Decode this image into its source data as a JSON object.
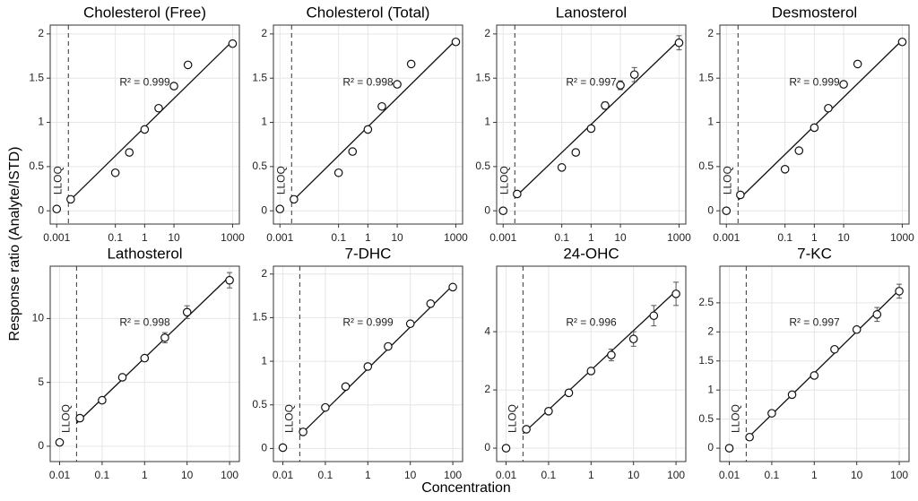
{
  "ylabel": "Response ratio (Analyte/ISTD)",
  "xlabel": "Concentration",
  "chart_data": [
    {
      "type": "scatter",
      "title": "Cholesterol (Free)",
      "log_x": true,
      "grid": true,
      "x": [
        0.001,
        0.003,
        0.1,
        0.3,
        1,
        3,
        10,
        30,
        1000
      ],
      "values": [
        0.02,
        0.13,
        0.43,
        0.66,
        0.92,
        1.16,
        1.41,
        1.65,
        1.89
      ],
      "errors": [
        0,
        0,
        0,
        0,
        0,
        0,
        0,
        0.03,
        0
      ],
      "fit": {
        "x": [
          0.0025,
          1000
        ],
        "y": [
          0.1,
          1.92
        ]
      },
      "lloq": {
        "x": 0.0025,
        "label": "LLOQ"
      },
      "annotation": "R² = 0.999",
      "xlim": [
        0.0006,
        1700
      ],
      "xticks": [
        0.001,
        0.1,
        1,
        10,
        1000
      ],
      "ylim": [
        -0.15,
        2.1
      ],
      "yticks": [
        0,
        0.5,
        1,
        1.5,
        2
      ]
    },
    {
      "type": "scatter",
      "title": "Cholesterol (Total)",
      "log_x": true,
      "grid": true,
      "x": [
        0.001,
        0.003,
        0.1,
        0.3,
        1,
        3,
        10,
        30,
        1000
      ],
      "values": [
        0.02,
        0.13,
        0.43,
        0.67,
        0.92,
        1.18,
        1.43,
        1.66,
        1.91
      ],
      "errors": [
        0,
        0,
        0,
        0,
        0,
        0,
        0,
        0,
        0
      ],
      "fit": {
        "x": [
          0.0025,
          1000
        ],
        "y": [
          0.1,
          1.93
        ]
      },
      "lloq": {
        "x": 0.0025,
        "label": "LLOQ"
      },
      "annotation": "R² = 0.998",
      "xlim": [
        0.0006,
        1700
      ],
      "xticks": [
        0.001,
        0.1,
        1,
        10,
        1000
      ],
      "ylim": [
        -0.15,
        2.1
      ],
      "yticks": [
        0,
        0.5,
        1,
        1.5,
        2
      ]
    },
    {
      "type": "scatter",
      "title": "Lanosterol",
      "log_x": true,
      "grid": true,
      "x": [
        0.001,
        0.003,
        0.1,
        0.3,
        1,
        3,
        10,
        30,
        1000
      ],
      "values": [
        0.0,
        0.19,
        0.49,
        0.66,
        0.93,
        1.19,
        1.42,
        1.54,
        1.9
      ],
      "errors": [
        0,
        0.02,
        0,
        0,
        0,
        0.04,
        0.05,
        0.08,
        0.08
      ],
      "fit": {
        "x": [
          0.0025,
          1000
        ],
        "y": [
          0.15,
          1.93
        ]
      },
      "lloq": {
        "x": 0.0025,
        "label": "LLOQ"
      },
      "annotation": "R² = 0.997",
      "xlim": [
        0.0006,
        1700
      ],
      "xticks": [
        0.001,
        0.1,
        1,
        10,
        1000
      ],
      "ylim": [
        -0.15,
        2.1
      ],
      "yticks": [
        0,
        0.5,
        1,
        1.5,
        2
      ]
    },
    {
      "type": "scatter",
      "title": "Desmosterol",
      "log_x": true,
      "grid": true,
      "x": [
        0.001,
        0.003,
        0.1,
        0.3,
        1,
        3,
        10,
        30,
        1000
      ],
      "values": [
        0.0,
        0.18,
        0.47,
        0.68,
        0.94,
        1.16,
        1.43,
        1.66,
        1.91
      ],
      "errors": [
        0,
        0,
        0,
        0,
        0,
        0,
        0,
        0,
        0
      ],
      "fit": {
        "x": [
          0.0025,
          1000
        ],
        "y": [
          0.12,
          1.93
        ]
      },
      "lloq": {
        "x": 0.0025,
        "label": "LLOQ"
      },
      "annotation": "R² = 0.999",
      "xlim": [
        0.0006,
        1700
      ],
      "xticks": [
        0.001,
        0.1,
        1,
        10,
        1000
      ],
      "ylim": [
        -0.15,
        2.1
      ],
      "yticks": [
        0,
        0.5,
        1,
        1.5,
        2
      ]
    },
    {
      "type": "scatter",
      "title": "Lathosterol",
      "log_x": true,
      "grid": true,
      "x": [
        0.01,
        0.03,
        0.1,
        0.3,
        1,
        3,
        10,
        100
      ],
      "values": [
        0.3,
        2.2,
        3.6,
        5.4,
        6.9,
        8.5,
        10.5,
        13.0
      ],
      "errors": [
        0,
        0,
        0,
        0,
        0,
        0.4,
        0.5,
        0.6
      ],
      "fit": {
        "x": [
          0.025,
          100
        ],
        "y": [
          1.8,
          13.3
        ]
      },
      "lloq": {
        "x": 0.025,
        "label": "LLOQ"
      },
      "annotation": "R² = 0.998",
      "xlim": [
        0.006,
        170
      ],
      "xticks": [
        0.01,
        0.1,
        1,
        10,
        100
      ],
      "ylim": [
        -1.2,
        14.1
      ],
      "yticks": [
        0,
        5,
        10
      ]
    },
    {
      "type": "scatter",
      "title": "7-DHC",
      "log_x": true,
      "grid": true,
      "x": [
        0.01,
        0.03,
        0.1,
        0.3,
        1,
        3,
        10,
        30,
        100
      ],
      "values": [
        0.01,
        0.19,
        0.47,
        0.71,
        0.94,
        1.17,
        1.43,
        1.66,
        1.85
      ],
      "errors": [
        0,
        0,
        0,
        0,
        0,
        0,
        0,
        0,
        0
      ],
      "fit": {
        "x": [
          0.025,
          100
        ],
        "y": [
          0.15,
          1.87
        ]
      },
      "lloq": {
        "x": 0.025,
        "label": "LLOQ"
      },
      "annotation": "R² = 0.999",
      "xlim": [
        0.006,
        170
      ],
      "xticks": [
        0.01,
        0.1,
        1,
        10,
        100
      ],
      "ylim": [
        -0.15,
        2.09
      ],
      "yticks": [
        0,
        0.5,
        1,
        1.5,
        2
      ]
    },
    {
      "type": "scatter",
      "title": "24-OHC",
      "log_x": true,
      "grid": true,
      "x": [
        0.01,
        0.03,
        0.1,
        0.3,
        1,
        3,
        10,
        30,
        100
      ],
      "values": [
        0.0,
        0.65,
        1.27,
        1.9,
        2.65,
        3.2,
        3.75,
        4.55,
        5.3
      ],
      "errors": [
        0,
        0,
        0,
        0,
        0,
        0.2,
        0.25,
        0.35,
        0.4
      ],
      "fit": {
        "x": [
          0.025,
          100
        ],
        "y": [
          0.5,
          5.4
        ]
      },
      "lloq": {
        "x": 0.025,
        "label": "LLOQ"
      },
      "annotation": "R² = 0.996",
      "xlim": [
        0.006,
        170
      ],
      "xticks": [
        0.01,
        0.1,
        1,
        10,
        100
      ],
      "ylim": [
        -0.46,
        6.25
      ],
      "yticks": [
        0,
        2,
        4
      ]
    },
    {
      "type": "scatter",
      "title": "7-KC",
      "log_x": true,
      "grid": true,
      "x": [
        0.01,
        0.03,
        0.1,
        0.3,
        1,
        3,
        10,
        30,
        100
      ],
      "values": [
        0.0,
        0.19,
        0.6,
        0.92,
        1.25,
        1.7,
        2.04,
        2.3,
        2.7
      ],
      "errors": [
        0,
        0,
        0,
        0,
        0,
        0.05,
        0,
        0.12,
        0.12
      ],
      "fit": {
        "x": [
          0.025,
          100
        ],
        "y": [
          0.15,
          2.72
        ]
      },
      "lloq": {
        "x": 0.025,
        "label": "LLOQ"
      },
      "annotation": "R² = 0.997",
      "xlim": [
        0.006,
        170
      ],
      "xticks": [
        0.01,
        0.1,
        1,
        10,
        100
      ],
      "ylim": [
        -0.23,
        3.13
      ],
      "yticks": [
        0,
        0.5,
        1,
        1.5,
        2,
        2.5
      ]
    }
  ]
}
